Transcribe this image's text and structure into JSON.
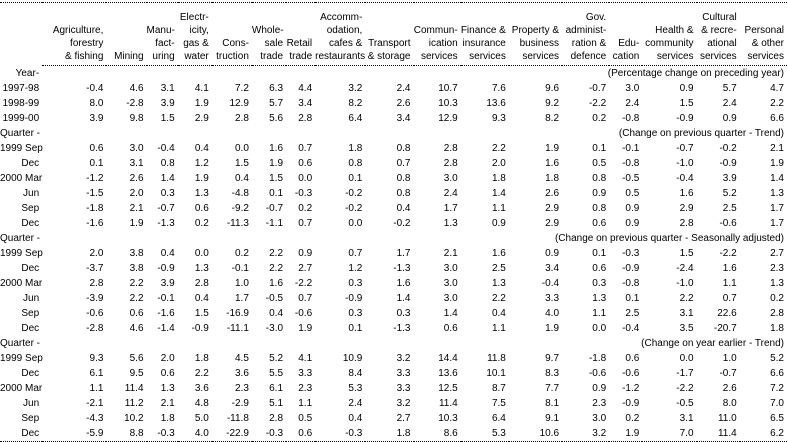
{
  "table": {
    "title_note": "",
    "row_label_header": "",
    "columns": [
      {
        "label": "Agriculture,\nforestry\n& fishing"
      },
      {
        "label": "Mining"
      },
      {
        "label": "Manu-\nfact-\nuring"
      },
      {
        "label": "Electr-\nicity,\ngas &\nwater"
      },
      {
        "label": "Cons-\ntruction"
      },
      {
        "label": "Whole-\nsale\ntrade"
      },
      {
        "label": "Retail\ntrade"
      },
      {
        "label": "Accomm-\nodation,\ncafes &\nrestaurants"
      },
      {
        "label": "Transport\n& storage"
      },
      {
        "label": "Commun-\nication\nservices"
      },
      {
        "label": "Finance &\ninsurance\nservices"
      },
      {
        "label": "Property &\nbusiness\nservices"
      },
      {
        "label": "Gov.\nadminist-\nration &\ndefence"
      },
      {
        "label": "Edu-\ncation"
      },
      {
        "label": "Health &\ncommunity\nservices"
      },
      {
        "label": "Cultural\n& recre-\national\nservices"
      },
      {
        "label": "Personal\n& other\nservices"
      }
    ],
    "sections": [
      {
        "label": "Year-",
        "caption": "(Percentage change on preceding year)",
        "rows": [
          {
            "period": "1997-98",
            "values": [
              "-0.4",
              "4.6",
              "3.1",
              "4.1",
              "7.2",
              "6.3",
              "4.4",
              "3.2",
              "2.4",
              "10.7",
              "7.6",
              "9.6",
              "-0.7",
              "3.0",
              "0.9",
              "5.7",
              "4.7"
            ]
          },
          {
            "period": "1998-99",
            "values": [
              "8.0",
              "-2.8",
              "3.9",
              "1.9",
              "12.9",
              "5.7",
              "3.4",
              "8.2",
              "2.6",
              "10.3",
              "13.6",
              "9.2",
              "-2.2",
              "2.4",
              "1.5",
              "2.4",
              "2.2"
            ]
          },
          {
            "period": "1999-00",
            "values": [
              "3.9",
              "9.8",
              "1.5",
              "2.9",
              "2.8",
              "5.6",
              "2.8",
              "6.4",
              "3.4",
              "12.9",
              "9.3",
              "8.2",
              "0.2",
              "-0.8",
              "-0.9",
              "0.9",
              "6.6"
            ]
          }
        ]
      },
      {
        "label": "Quarter -",
        "caption": "(Change on previous quarter - Trend)",
        "rows": [
          {
            "period": "1999 Sep",
            "values": [
              "0.6",
              "3.0",
              "-0.4",
              "0.4",
              "0.0",
              "1.6",
              "0.7",
              "1.8",
              "0.8",
              "2.8",
              "2.2",
              "1.9",
              "0.1",
              "-0.1",
              "-0.7",
              "-0.2",
              "2.1"
            ]
          },
          {
            "period": "Dec",
            "values": [
              "0.1",
              "3.1",
              "0.8",
              "1.2",
              "1.5",
              "1.9",
              "0.6",
              "0.8",
              "0.7",
              "2.8",
              "2.0",
              "1.6",
              "0.5",
              "-0.8",
              "-1.0",
              "-0.9",
              "1.9"
            ]
          },
          {
            "period": "2000 Mar",
            "values": [
              "-1.2",
              "2.6",
              "1.4",
              "1.9",
              "0.4",
              "1.5",
              "0.0",
              "0.1",
              "0.8",
              "3.0",
              "1.8",
              "1.8",
              "0.8",
              "-0.5",
              "-0.4",
              "3.9",
              "1.4"
            ]
          },
          {
            "period": "Jun",
            "values": [
              "-1.5",
              "2.0",
              "0.3",
              "1.3",
              "-4.8",
              "0.1",
              "-0.3",
              "-0.2",
              "0.8",
              "2.4",
              "1.4",
              "2.6",
              "0.9",
              "0.5",
              "1.6",
              "5.2",
              "1.3"
            ]
          },
          {
            "period": "Sep",
            "values": [
              "-1.8",
              "2.1",
              "-0.7",
              "0.6",
              "-9.2",
              "-0.7",
              "0.2",
              "-0.2",
              "0.4",
              "1.7",
              "1.1",
              "2.9",
              "0.8",
              "0.9",
              "2.9",
              "2.5",
              "1.7"
            ]
          },
          {
            "period": "Dec",
            "values": [
              "-1.6",
              "1.9",
              "-1.3",
              "0.2",
              "-11.3",
              "-1.1",
              "0.7",
              "0.0",
              "-0.2",
              "1.3",
              "0.9",
              "2.9",
              "0.6",
              "0.9",
              "2.8",
              "-0.6",
              "1.7"
            ]
          }
        ]
      },
      {
        "label": "Quarter -",
        "caption": "(Change on previous quarter - Seasonally adjusted)",
        "rows": [
          {
            "period": "1999 Sep",
            "values": [
              "2.0",
              "3.8",
              "0.4",
              "0.0",
              "0.2",
              "2.2",
              "0.9",
              "0.7",
              "1.7",
              "2.1",
              "1.6",
              "0.9",
              "0.1",
              "-0.3",
              "1.5",
              "-2.2",
              "2.7"
            ]
          },
          {
            "period": "Dec",
            "values": [
              "-3.7",
              "3.8",
              "-0.9",
              "1.3",
              "-0.1",
              "2.2",
              "2.7",
              "1.2",
              "-1.3",
              "3.0",
              "2.5",
              "3.4",
              "0.6",
              "-0.9",
              "-2.4",
              "1.6",
              "2.3"
            ]
          },
          {
            "period": "2000 Mar",
            "values": [
              "2.8",
              "2.2",
              "3.9",
              "2.8",
              "1.0",
              "1.6",
              "-2.2",
              "0.3",
              "1.6",
              "3.0",
              "1.3",
              "-0.4",
              "0.3",
              "-0.8",
              "-1.0",
              "1.1",
              "1.3"
            ]
          },
          {
            "period": "Jun",
            "values": [
              "-3.9",
              "2.2",
              "-0.1",
              "0.4",
              "1.7",
              "-0.5",
              "0.7",
              "-0.9",
              "1.4",
              "3.0",
              "2.2",
              "3.3",
              "1.3",
              "0.1",
              "2.2",
              "0.7",
              "0.2"
            ]
          },
          {
            "period": "Sep",
            "values": [
              "-0.6",
              "0.6",
              "-1.6",
              "1.5",
              "-16.9",
              "0.4",
              "-0.6",
              "0.3",
              "0.3",
              "1.4",
              "0.4",
              "4.0",
              "1.1",
              "2.5",
              "3.1",
              "22.6",
              "2.8"
            ]
          },
          {
            "period": "Dec",
            "values": [
              "-2.8",
              "4.6",
              "-1.4",
              "-0.9",
              "-11.1",
              "-3.0",
              "1.9",
              "0.1",
              "-1.3",
              "0.6",
              "1.1",
              "1.9",
              "0.0",
              "-0.4",
              "3.5",
              "-20.7",
              "1.8"
            ]
          }
        ]
      },
      {
        "label": "Quarter -",
        "caption": "(Change on year earlier - Trend)",
        "rows": [
          {
            "period": "1999 Sep",
            "values": [
              "9.3",
              "5.6",
              "2.0",
              "1.8",
              "4.5",
              "5.2",
              "4.1",
              "10.9",
              "3.2",
              "14.4",
              "11.8",
              "9.7",
              "-1.8",
              "0.6",
              "0.0",
              "1.0",
              "5.2"
            ]
          },
          {
            "period": "Dec",
            "values": [
              "6.1",
              "9.5",
              "0.6",
              "2.2",
              "3.6",
              "5.5",
              "3.3",
              "8.4",
              "3.3",
              "13.6",
              "10.1",
              "8.3",
              "-0.6",
              "-0.6",
              "-1.7",
              "-0.7",
              "6.6"
            ]
          },
          {
            "period": "2000 Mar",
            "values": [
              "1.1",
              "11.4",
              "1.3",
              "3.6",
              "2.3",
              "6.1",
              "2.3",
              "5.3",
              "3.3",
              "12.5",
              "8.7",
              "7.7",
              "0.9",
              "-1.2",
              "-2.2",
              "2.6",
              "7.2"
            ]
          },
          {
            "period": "Jun",
            "values": [
              "-2.1",
              "11.2",
              "2.1",
              "4.8",
              "-2.9",
              "5.1",
              "1.1",
              "2.4",
              "3.2",
              "11.4",
              "7.5",
              "8.1",
              "2.3",
              "-0.9",
              "-0.5",
              "8.0",
              "7.0"
            ]
          },
          {
            "period": "Sep",
            "values": [
              "-4.3",
              "10.2",
              "1.8",
              "5.0",
              "-11.8",
              "2.8",
              "0.5",
              "0.4",
              "2.7",
              "10.3",
              "6.4",
              "9.1",
              "3.0",
              "0.2",
              "3.1",
              "11.0",
              "6.5"
            ]
          },
          {
            "period": "Dec",
            "values": [
              "-5.9",
              "8.8",
              "-0.3",
              "4.0",
              "-22.9",
              "-0.3",
              "0.6",
              "-0.3",
              "1.8",
              "8.6",
              "5.3",
              "10.6",
              "3.2",
              "1.9",
              "7.0",
              "11.4",
              "6.2"
            ]
          }
        ]
      }
    ]
  }
}
